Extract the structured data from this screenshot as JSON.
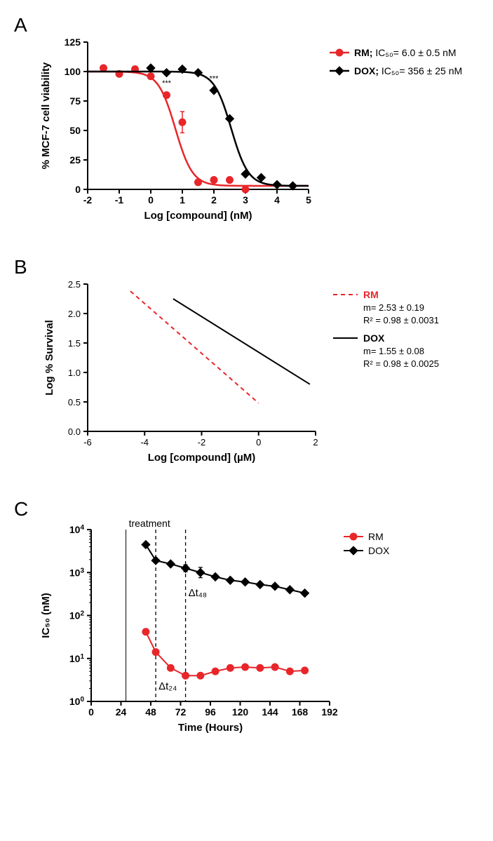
{
  "panelA": {
    "label": "A",
    "type": "dose-response-sigmoid",
    "xlabel": "Log [compound] (nM)",
    "ylabel": "% MCF-7 cell viability",
    "xlim": [
      -2,
      5
    ],
    "ylim": [
      0,
      125
    ],
    "xtick_step": 1,
    "ytick_step": 25,
    "axis_color": "#000000",
    "axis_width": 2,
    "tick_fontsize": 14,
    "label_fontsize": 15,
    "label_fontweight": "bold",
    "marker_size": 5,
    "line_width": 2.5,
    "series": [
      {
        "name": "RM",
        "color": "#e8262a",
        "marker": "circle",
        "legend_prefix_bold": "RM; ",
        "legend_text": "IC₅₀= 6.0 ± 0.5 nM",
        "points_x": [
          -1.5,
          -1.0,
          -0.5,
          0.0,
          0.5,
          1.0,
          1.5,
          2.0,
          2.5,
          3.0
        ],
        "points_y": [
          103,
          98,
          102,
          96,
          80,
          57,
          6,
          8,
          8,
          0
        ],
        "err_y": [
          null,
          null,
          null,
          null,
          null,
          9,
          null,
          null,
          null,
          null
        ],
        "curve": {
          "top": 100,
          "bottom": 3,
          "hill": -1.6,
          "logIC50": 0.78
        },
        "sig_label": "***",
        "sig_x": 0.5,
        "sig_y": 88
      },
      {
        "name": "DOX",
        "color": "#000000",
        "marker": "diamond",
        "legend_prefix_bold": "DOX; ",
        "legend_text": "IC₅₀= 356 ± 25 nM",
        "points_x": [
          0.0,
          0.5,
          1.0,
          1.5,
          2.0,
          2.5,
          3.0,
          3.5,
          4.0,
          4.5
        ],
        "points_y": [
          103,
          99,
          102,
          99,
          84,
          60,
          13,
          10,
          4,
          3
        ],
        "err_y": [
          null,
          null,
          null,
          null,
          null,
          null,
          null,
          null,
          null,
          null
        ],
        "curve": {
          "top": 100,
          "bottom": 3,
          "hill": -1.6,
          "logIC50": 2.55
        },
        "sig_label": "***",
        "sig_x": 2.0,
        "sig_y": 92
      }
    ]
  },
  "panelB": {
    "label": "B",
    "type": "linear-loglog",
    "xlabel": "Log [compound] (µM)",
    "ylabel": "Log % Survival",
    "xlim": [
      -6,
      2
    ],
    "ylim": [
      0.0,
      2.5
    ],
    "xtick_step": 2,
    "ytick_step": 0.5,
    "axis_color": "#000000",
    "axis_width": 2,
    "tick_fontsize": 13,
    "label_fontsize": 15,
    "label_fontweight": "bold",
    "line_width": 2,
    "series": [
      {
        "name": "RM",
        "color": "#e8262a",
        "dash": "6,5",
        "legend_label": "RM",
        "legend_bold": true,
        "stats_m": "m= 2.53 ±  0.19",
        "stats_r2": "R² = 0.98 ± 0.0031",
        "x1": -4.5,
        "y1": 2.38,
        "x2": 0.0,
        "y2": 0.48
      },
      {
        "name": "DOX",
        "color": "#000000",
        "dash": null,
        "legend_label": "DOX",
        "legend_bold": true,
        "stats_m": "m= 1.55 ± 0.08",
        "stats_r2": "R² = 0.98 ± 0.0025",
        "x1": -3.0,
        "y1": 2.25,
        "x2": 1.8,
        "y2": 0.8
      }
    ]
  },
  "panelC": {
    "label": "C",
    "type": "semilog-time",
    "xlabel": "Time (Hours)",
    "ylabel": "IC₅₀ (nM)",
    "xlim": [
      0,
      192
    ],
    "ylim_log": [
      0,
      4
    ],
    "xtick_step": 24,
    "ytick_exponents": [
      0,
      1,
      2,
      3,
      4
    ],
    "axis_color": "#000000",
    "axis_width": 2,
    "tick_fontsize": 14,
    "label_fontsize": 15,
    "label_fontweight": "bold",
    "marker_size": 5,
    "line_width": 2,
    "treatment_label": "treatment",
    "treatment_x": 28,
    "dt24_label": "Δt₂₄",
    "dt24_x": 52,
    "dt48_label": "Δt₄₈",
    "dt48_x": 76,
    "vline_solid_color": "#000000",
    "vline_dash_color": "#000000",
    "vline_dash": "5,4",
    "series": [
      {
        "name": "RM",
        "color": "#e8262a",
        "marker": "circle",
        "legend_label": "RM",
        "points_x": [
          44,
          52,
          64,
          76,
          88,
          100,
          112,
          124,
          136,
          148,
          160,
          172
        ],
        "points_log_y": [
          1.62,
          1.15,
          0.78,
          0.6,
          0.6,
          0.7,
          0.78,
          0.8,
          0.78,
          0.8,
          0.7,
          0.72
        ],
        "err_log_y": [
          null,
          null,
          null,
          null,
          null,
          null,
          null,
          null,
          null,
          null,
          null,
          null
        ]
      },
      {
        "name": "DOX",
        "color": "#000000",
        "marker": "diamond",
        "legend_label": "DOX",
        "points_x": [
          44,
          52,
          64,
          76,
          88,
          100,
          112,
          124,
          136,
          148,
          160,
          172
        ],
        "points_log_y": [
          3.65,
          3.28,
          3.2,
          3.1,
          3.0,
          2.9,
          2.82,
          2.78,
          2.72,
          2.68,
          2.6,
          2.52
        ],
        "err_log_y": [
          null,
          null,
          null,
          0.08,
          0.12,
          null,
          null,
          null,
          null,
          null,
          null,
          null
        ]
      }
    ]
  },
  "colors": {
    "background": "#ffffff",
    "text": "#000000"
  }
}
